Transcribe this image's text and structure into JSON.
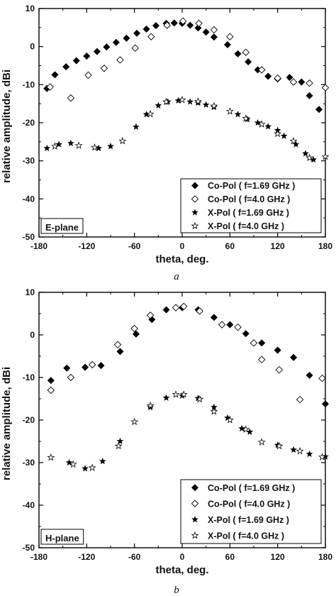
{
  "chart_data": [
    {
      "type": "scatter",
      "panel_label": "E-plane",
      "caption": "a",
      "xlabel": "theta, deg.",
      "ylabel": "relative amplitude, dBi",
      "xlim": [
        -180,
        180
      ],
      "ylim": [
        -50,
        10
      ],
      "xticks": [
        -180,
        -120,
        -60,
        0,
        60,
        120,
        180
      ],
      "yticks": [
        10,
        0,
        -10,
        -20,
        -30,
        -40,
        -50
      ],
      "grid": false,
      "legend_position": "bottom-right",
      "series": [
        {
          "name": "Co-Pol ( f=1.69 GHz )",
          "marker": "diamond-filled",
          "x": [
            -170,
            -160,
            -146,
            -133,
            -120,
            -107,
            -95,
            -83,
            -70,
            -57,
            -45,
            -33,
            -20,
            -10,
            0,
            10,
            20,
            30,
            40,
            57,
            70,
            83,
            95,
            108,
            120,
            135,
            150,
            160,
            172
          ],
          "y": [
            -11,
            -7.4,
            -5.3,
            -3.7,
            -2.5,
            -1.3,
            -0.1,
            1.1,
            2.2,
            3.5,
            4.6,
            5.5,
            6.1,
            6.2,
            6.1,
            5.6,
            4.9,
            3.8,
            2.5,
            0.5,
            -1.9,
            -4,
            -6.1,
            -7.8,
            -8.5,
            -8.1,
            -9.3,
            -12.9,
            -16.5
          ]
        },
        {
          "name": "Co-Pol ( f=4.0 GHz )",
          "marker": "diamond-open",
          "x": [
            -166,
            -140,
            -118,
            -98,
            -78,
            -59,
            -39,
            -19,
            1,
            21,
            40,
            60,
            80,
            100,
            120,
            140,
            160,
            180
          ],
          "y": [
            -10.6,
            -13.5,
            -7.5,
            -5.7,
            -3.5,
            -0.4,
            2.6,
            5.6,
            6.7,
            6.1,
            4.4,
            2.6,
            -1.5,
            -6.1,
            -8.3,
            -9.3,
            -9.6,
            -10.8
          ]
        },
        {
          "name": "X-Pol ( f=1.69 GHz )",
          "marker": "star-filled",
          "x": [
            -170,
            -155,
            -140,
            -105,
            -90,
            -58,
            -45,
            -30,
            -18,
            -5,
            10,
            20,
            30,
            40,
            70,
            82,
            95,
            108,
            120,
            128,
            143,
            155,
            165
          ],
          "y": [
            -26.7,
            -25.7,
            -25.4,
            -26.7,
            -26.2,
            -21.1,
            -17.8,
            -15.5,
            -14.5,
            -14.2,
            -14.5,
            -14.8,
            -15.3,
            -15.9,
            -17.8,
            -19.1,
            -20,
            -21,
            -22,
            -23.5,
            -25.7,
            -28.1,
            -29.7
          ]
        },
        {
          "name": "X-Pol ( f=4.0 GHz )",
          "marker": "star-open",
          "x": [
            -160,
            -130,
            -110,
            -75,
            -40,
            -20,
            0,
            20,
            40,
            60,
            80,
            100,
            120,
            140,
            160,
            180
          ],
          "y": [
            -26.2,
            -26,
            -26.5,
            -24.8,
            -17.7,
            -14.5,
            -14,
            -14.4,
            -15.6,
            -17,
            -18.9,
            -20.4,
            -22.9,
            -24.8,
            -29.2,
            -28.9
          ]
        }
      ]
    },
    {
      "type": "scatter",
      "panel_label": "H-plane",
      "caption": "b",
      "xlabel": "theta, deg.",
      "ylabel": "relative amplitude, dBi",
      "xlim": [
        -180,
        180
      ],
      "ylim": [
        -50,
        10
      ],
      "xticks": [
        -180,
        -120,
        -60,
        0,
        60,
        120,
        180
      ],
      "yticks": [
        10,
        0,
        -10,
        -20,
        -30,
        -40,
        -50
      ],
      "grid": false,
      "legend_position": "bottom-right",
      "series": [
        {
          "name": "Co-Pol ( f=1.69 GHz )",
          "marker": "diamond-filled",
          "x": [
            -165,
            -145,
            -122,
            -102,
            -78,
            -58,
            -38,
            -20,
            0,
            20,
            40,
            60,
            80,
            100,
            120,
            140,
            160,
            180
          ],
          "y": [
            -10.7,
            -7.8,
            -7.6,
            -7.2,
            -3.9,
            0.2,
            3.6,
            5.9,
            6.4,
            5.9,
            4.1,
            2.4,
            0.3,
            -1.9,
            -3.6,
            -5.3,
            -9.5,
            -16.2
          ]
        },
        {
          "name": "Co-Pol ( f=4.0 GHz )",
          "marker": "diamond-open",
          "x": [
            -165,
            -140,
            -113,
            -81,
            -60,
            -40,
            -8,
            2,
            22,
            50,
            70,
            90,
            100,
            122,
            148,
            176
          ],
          "y": [
            -13,
            -10,
            -7,
            -2.3,
            1.5,
            4.6,
            6.4,
            6.7,
            5.6,
            2.4,
            1.8,
            -1.9,
            -5.8,
            -8.2,
            -15.2,
            -10.2
          ]
        },
        {
          "name": "X-Pol ( f=1.69 GHz )",
          "marker": "star-filled",
          "x": [
            -142,
            -122,
            -100,
            -78,
            -40,
            -20,
            0,
            20,
            40,
            57,
            75,
            85,
            120,
            140,
            160,
            180
          ],
          "y": [
            -30,
            -31.4,
            -29.7,
            -25,
            -17,
            -14.8,
            -14.3,
            -14.9,
            -17,
            -19.5,
            -22,
            -22.8,
            -25.9,
            -27,
            -28,
            -28.6
          ]
        },
        {
          "name": "X-Pol ( f=4.0 GHz )",
          "marker": "star-open",
          "x": [
            -165,
            -137,
            -113,
            -80,
            -60,
            -40,
            -8,
            2,
            22,
            40,
            60,
            80,
            100,
            122,
            148,
            176
          ],
          "y": [
            -28.8,
            -30.4,
            -31.2,
            -26.1,
            -20.4,
            -16.6,
            -14,
            -14,
            -15.1,
            -18,
            -20,
            -22.2,
            -25.2,
            -26.1,
            -27.3,
            -28.7
          ]
        }
      ]
    }
  ]
}
